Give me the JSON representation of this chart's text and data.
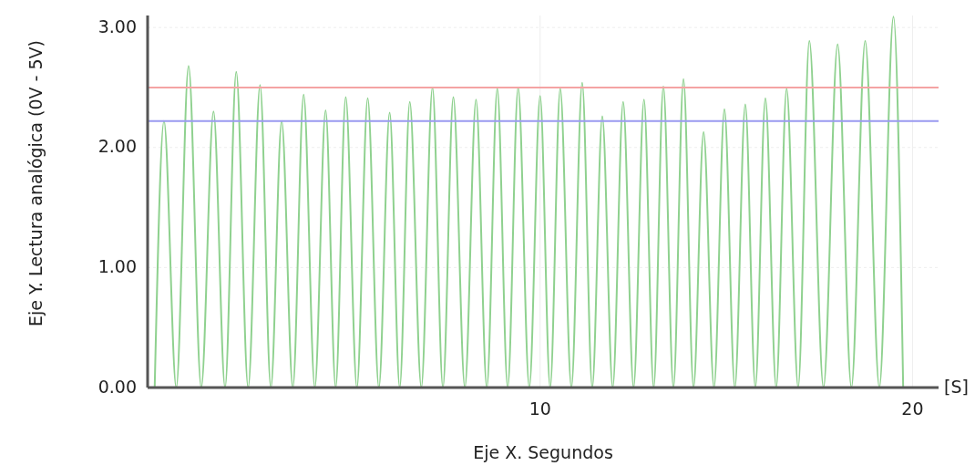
{
  "chart_data": {
    "type": "line",
    "xlabel": "Eje X. Segundos",
    "ylabel": "Eje Y. Lectura analógica (0V - 5V)",
    "annotations": [
      "[S]"
    ],
    "xlim": [
      -0.54,
      20.7
    ],
    "xticks": [
      10,
      20
    ],
    "ylim": [
      0,
      3.1
    ],
    "yticks": [
      {
        "value": 0,
        "label": "0.00"
      },
      {
        "value": 1,
        "label": "1.00"
      },
      {
        "value": 2,
        "label": "2.00"
      },
      {
        "value": 3,
        "label": "3.00"
      }
    ],
    "grid": true,
    "marker": "none",
    "line_style": "solid",
    "ref_lines": [
      {
        "axis": "y",
        "value": 2.5,
        "color": "#f4a3a3"
      },
      {
        "axis": "y",
        "value": 2.22,
        "color": "#9a9af0"
      }
    ],
    "series": [
      {
        "color": "#8fd18f",
        "x": [
          -0.35,
          -0.1,
          0.23,
          0.56,
          0.9,
          1.23,
          1.54,
          1.84,
          2.16,
          2.48,
          2.77,
          3.06,
          3.36,
          3.65,
          3.95,
          4.24,
          4.51,
          4.78,
          5.08,
          5.37,
          5.67,
          5.96,
          6.23,
          6.5,
          6.81,
          7.11,
          7.39,
          7.67,
          7.98,
          8.28,
          8.57,
          8.85,
          9.13,
          9.41,
          9.71,
          10.0,
          10.27,
          10.54,
          10.84,
          11.13,
          11.4,
          11.67,
          11.95,
          12.23,
          12.51,
          12.79,
          13.05,
          13.31,
          13.58,
          13.85,
          14.12,
          14.39,
          14.67,
          14.95,
          15.23,
          15.51,
          15.78,
          16.05,
          16.34,
          16.62,
          16.93,
          17.23,
          17.61,
          17.99,
          18.36,
          18.73,
          19.11,
          19.49,
          19.75
        ],
        "values": [
          0,
          2.22,
          0,
          2.68,
          0,
          2.3,
          0,
          2.63,
          0,
          2.52,
          0,
          2.22,
          0,
          2.44,
          0,
          2.31,
          0,
          2.42,
          0,
          2.41,
          0,
          2.29,
          0,
          2.38,
          0,
          2.5,
          0,
          2.42,
          0,
          2.4,
          0,
          2.49,
          0,
          2.5,
          0,
          2.43,
          0,
          2.49,
          0,
          2.54,
          0,
          2.26,
          0,
          2.38,
          0,
          2.4,
          0,
          2.51,
          0,
          2.57,
          0,
          2.13,
          0,
          2.32,
          0,
          2.36,
          0,
          2.41,
          0,
          2.49,
          0,
          2.89,
          0,
          2.86,
          0,
          2.89,
          0,
          3.09,
          0
        ]
      }
    ]
  }
}
